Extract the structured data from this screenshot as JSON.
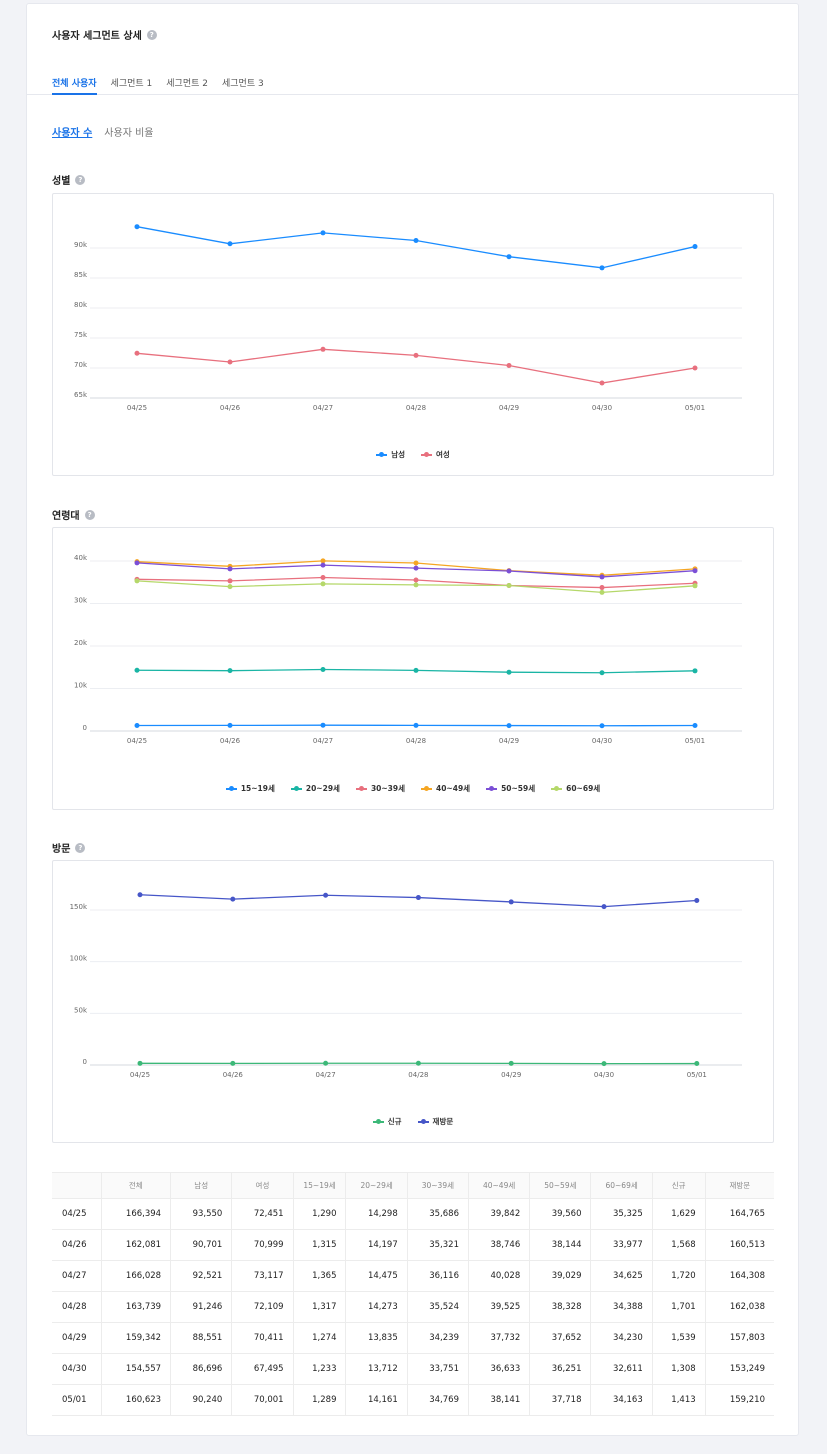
{
  "header": {
    "title": "사용자 세그먼트 상세",
    "help": "?"
  },
  "tabs": [
    "전체 사용자",
    "세그먼트 1",
    "세그먼트 2",
    "세그먼트 3"
  ],
  "subtabs": [
    "사용자 수",
    "사용자 비율"
  ],
  "chart_data": [
    {
      "type": "line",
      "title": "성별",
      "categories": [
        "04/25",
        "04/26",
        "04/27",
        "04/28",
        "04/29",
        "04/30",
        "05/01"
      ],
      "ylim": [
        65000,
        90000
      ],
      "yticks": [
        "65k",
        "70k",
        "75k",
        "80k",
        "85k",
        "90k"
      ],
      "ytick_values": [
        65000,
        70000,
        75000,
        80000,
        85000,
        90000
      ],
      "series": [
        {
          "name": "남성",
          "color": "#1a8cff",
          "values": [
            93550,
            90701,
            92521,
            91246,
            88551,
            86696,
            90240
          ]
        },
        {
          "name": "여성",
          "color": "#e8707e",
          "values": [
            72451,
            70999,
            73117,
            72109,
            70411,
            67495,
            70001
          ]
        }
      ]
    },
    {
      "type": "line",
      "title": "연령대",
      "categories": [
        "04/25",
        "04/26",
        "04/27",
        "04/28",
        "04/29",
        "04/30",
        "05/01"
      ],
      "ylim": [
        0,
        40000
      ],
      "yticks": [
        "0",
        "10k",
        "20k",
        "30k",
        "40k"
      ],
      "ytick_values": [
        0,
        10000,
        20000,
        30000,
        40000
      ],
      "series": [
        {
          "name": "15~19세",
          "color": "#1a8cff",
          "values": [
            1290,
            1315,
            1365,
            1317,
            1274,
            1233,
            1289
          ]
        },
        {
          "name": "20~29세",
          "color": "#1ab5a5",
          "values": [
            14298,
            14197,
            14475,
            14273,
            13835,
            13712,
            14161
          ]
        },
        {
          "name": "30~39세",
          "color": "#e8707e",
          "values": [
            35686,
            35321,
            36116,
            35524,
            34239,
            33751,
            34769
          ]
        },
        {
          "name": "40~49세",
          "color": "#f5a623",
          "values": [
            39842,
            38746,
            40028,
            39525,
            37732,
            36633,
            38141
          ]
        },
        {
          "name": "50~59세",
          "color": "#7b4fd6",
          "values": [
            39560,
            38144,
            39029,
            38328,
            37652,
            36251,
            37718
          ]
        },
        {
          "name": "60~69세",
          "color": "#b5d86a",
          "values": [
            35325,
            33977,
            34625,
            34388,
            34230,
            32611,
            34163
          ]
        }
      ]
    },
    {
      "type": "line",
      "title": "방문",
      "categories": [
        "04/25",
        "04/26",
        "04/27",
        "04/28",
        "04/29",
        "04/30",
        "05/01"
      ],
      "ylim": [
        0,
        150000
      ],
      "yticks": [
        "0",
        "50k",
        "100k",
        "150k"
      ],
      "ytick_values": [
        0,
        50000,
        100000,
        150000
      ],
      "series": [
        {
          "name": "신규",
          "color": "#3cb878",
          "values": [
            1629,
            1568,
            1720,
            1701,
            1539,
            1308,
            1413
          ]
        },
        {
          "name": "재방문",
          "color": "#4656c8",
          "values": [
            164765,
            160513,
            164308,
            162038,
            157803,
            153249,
            159210
          ]
        }
      ]
    }
  ],
  "table": {
    "headers": [
      "",
      "전체",
      "남성",
      "여성",
      "15~19세",
      "20~29세",
      "30~39세",
      "40~49세",
      "50~59세",
      "60~69세",
      "신규",
      "재방문"
    ],
    "rows": [
      [
        "04/25",
        "166,394",
        "93,550",
        "72,451",
        "1,290",
        "14,298",
        "35,686",
        "39,842",
        "39,560",
        "35,325",
        "1,629",
        "164,765"
      ],
      [
        "04/26",
        "162,081",
        "90,701",
        "70,999",
        "1,315",
        "14,197",
        "35,321",
        "38,746",
        "38,144",
        "33,977",
        "1,568",
        "160,513"
      ],
      [
        "04/27",
        "166,028",
        "92,521",
        "73,117",
        "1,365",
        "14,475",
        "36,116",
        "40,028",
        "39,029",
        "34,625",
        "1,720",
        "164,308"
      ],
      [
        "04/28",
        "163,739",
        "91,246",
        "72,109",
        "1,317",
        "14,273",
        "35,524",
        "39,525",
        "38,328",
        "34,388",
        "1,701",
        "162,038"
      ],
      [
        "04/29",
        "159,342",
        "88,551",
        "70,411",
        "1,274",
        "13,835",
        "34,239",
        "37,732",
        "37,652",
        "34,230",
        "1,539",
        "157,803"
      ],
      [
        "04/30",
        "154,557",
        "86,696",
        "67,495",
        "1,233",
        "13,712",
        "33,751",
        "36,633",
        "36,251",
        "32,611",
        "1,308",
        "153,249"
      ],
      [
        "05/01",
        "160,623",
        "90,240",
        "70,001",
        "1,289",
        "14,161",
        "34,769",
        "38,141",
        "37,718",
        "34,163",
        "1,413",
        "159,210"
      ]
    ]
  }
}
